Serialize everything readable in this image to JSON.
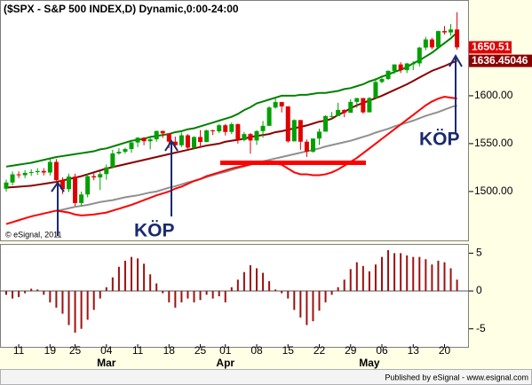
{
  "title": "($SPX - S&P 500 INDEX,D) Dynamic,0:00-24:00",
  "copyright": "© eSignal, 2011",
  "footer": "Published by eSignal - www.esignal.com",
  "chart_data": [
    {
      "type": "candlestick",
      "categories": [
        null,
        null,
        "11",
        null,
        null,
        null,
        null,
        "19",
        null,
        null,
        null,
        "25",
        null,
        null,
        null,
        null,
        "04",
        null,
        null,
        null,
        null,
        "11",
        null,
        null,
        null,
        null,
        "18",
        null,
        null,
        null,
        null,
        "25",
        null,
        null,
        null,
        "01",
        null,
        null,
        null,
        null,
        "08",
        null,
        null,
        null,
        null,
        "15",
        null,
        null,
        null,
        null,
        "22",
        null,
        null,
        null,
        null,
        "29",
        null,
        null,
        null,
        null,
        "06",
        null,
        null,
        null,
        null,
        "13",
        null,
        null,
        null,
        null,
        "20",
        null,
        null
      ],
      "month_labels": [
        null,
        null,
        null,
        null,
        null,
        null,
        null,
        null,
        null,
        null,
        null,
        null,
        null,
        null,
        null,
        null,
        "Mar",
        null,
        null,
        null,
        null,
        null,
        null,
        null,
        null,
        null,
        null,
        null,
        null,
        null,
        null,
        null,
        null,
        null,
        null,
        "Apr",
        null,
        null,
        null,
        null,
        null,
        null,
        null,
        null,
        null,
        null,
        null,
        null,
        null,
        null,
        null,
        null,
        null,
        null,
        null,
        null,
        null,
        null,
        "May",
        null,
        null,
        null,
        null,
        null,
        null,
        null,
        null,
        null,
        null,
        null,
        null,
        null,
        null
      ],
      "open": [
        1502.9,
        1509.4,
        1517.9,
        1517.0,
        1519.4,
        1520.3,
        1521.4,
        1519.8,
        1530.9,
        1511.9,
        1502.4,
        1515.6,
        1487.9,
        1496.9,
        1516.0,
        1514.7,
        1518.2,
        1525.2,
        1539.8,
        1541.5,
        1544.3,
        1551.2,
        1556.2,
        1552.5,
        1554.5,
        1563.2,
        1560.7,
        1552.1,
        1548.3,
        1558.7,
        1545.8,
        1556.9,
        1551.7,
        1563.8,
        1562.9,
        1569.2,
        1562.2,
        1570.3,
        1553.7,
        1560.0,
        1553.3,
        1563.1,
        1568.6,
        1587.7,
        1593.4,
        1588.9,
        1552.4,
        1574.6,
        1552.0,
        1541.6,
        1555.3,
        1562.5,
        1578.8,
        1578.8,
        1585.2,
        1582.2,
        1593.6,
        1597.6,
        1582.7,
        1597.6,
        1614.4,
        1617.5,
        1626.0,
        1632.7,
        1626.7,
        1633.7,
        1633.8,
        1650.3,
        1658.8,
        1650.5,
        1667.5,
        1666.1,
        1669.2
      ],
      "high": [
        1512.4,
        1520.9,
        1520.9,
        1522.4,
        1523.3,
        1524.4,
        1524.4,
        1533.9,
        1533.9,
        1514.9,
        1518.6,
        1518.6,
        1499.9,
        1519.0,
        1519.0,
        1521.2,
        1528.2,
        1543.5,
        1545.3,
        1545.7,
        1552.5,
        1556.8,
        1556.8,
        1556.4,
        1563.6,
        1563.6,
        1561.1,
        1557.3,
        1561.6,
        1560.0,
        1557.7,
        1564.2,
        1564.6,
        1564.6,
        1570.3,
        1570.6,
        1572.1,
        1571.0,
        1562.3,
        1561.0,
        1564.0,
        1573.7,
        1589.1,
        1597.3,
        1593.6,
        1589.0,
        1575.3,
        1574.6,
        1554.4,
        1555.4,
        1565.5,
        1579.6,
        1583.0,
        1592.6,
        1585.8,
        1596.6,
        1597.6,
        1597.6,
        1598.6,
        1618.5,
        1619.8,
        1626.5,
        1632.8,
        1635.0,
        1634.5,
        1636.0,
        1651.1,
        1661.5,
        1660.5,
        1668.0,
        1672.8,
        1674.9,
        1687.2
      ],
      "low": [
        1499.9,
        1506.4,
        1514.0,
        1514.0,
        1516.4,
        1517.3,
        1516.8,
        1516.8,
        1508.9,
        1497.4,
        1499.4,
        1484.9,
        1484.9,
        1493.9,
        1511.7,
        1501.5,
        1512.3,
        1524.2,
        1538.4,
        1539.5,
        1540.4,
        1546.4,
        1548.3,
        1544.1,
        1551.9,
        1555.9,
        1545.1,
        1545.8,
        1546.4,
        1543.8,
        1544.0,
        1546.2,
        1551.5,
        1558.9,
        1561.1,
        1558.5,
        1560.0,
        1550.1,
        1552.3,
        1539.5,
        1548.6,
        1556.1,
        1568.6,
        1586.5,
        1582.6,
        1551.0,
        1552.4,
        1543.5,
        1536.0,
        1540.5,
        1548.6,
        1562.5,
        1575.8,
        1578.8,
        1577.6,
        1582.2,
        1587.4,
        1581.3,
        1582.7,
        1597.6,
        1613.0,
        1616.6,
        1622.7,
        1623.7,
        1623.7,
        1626.7,
        1630.7,
        1647.6,
        1648.5,
        1652.1,
        1664.0,
        1662.7,
        1648.0
      ],
      "close": [
        1509.4,
        1517.9,
        1517.0,
        1519.4,
        1520.3,
        1521.4,
        1519.8,
        1530.9,
        1511.9,
        1502.4,
        1515.6,
        1487.9,
        1496.9,
        1516.0,
        1514.7,
        1518.2,
        1525.2,
        1539.8,
        1541.5,
        1544.3,
        1551.2,
        1556.2,
        1552.5,
        1554.5,
        1563.2,
        1560.7,
        1552.1,
        1548.3,
        1558.7,
        1545.8,
        1556.9,
        1551.7,
        1563.8,
        1562.9,
        1569.2,
        1562.2,
        1570.3,
        1553.7,
        1560.0,
        1553.3,
        1563.1,
        1568.6,
        1587.7,
        1593.4,
        1588.9,
        1552.4,
        1574.6,
        1552.0,
        1541.6,
        1555.3,
        1562.5,
        1578.8,
        1578.8,
        1585.2,
        1582.2,
        1593.6,
        1597.6,
        1582.7,
        1597.6,
        1614.4,
        1617.5,
        1626.0,
        1632.7,
        1626.7,
        1633.7,
        1633.8,
        1650.3,
        1658.8,
        1650.5,
        1667.5,
        1666.1,
        1669.2,
        1650.51
      ],
      "up_color": "#00a000",
      "down_color": "#e00000",
      "series": [
        {
          "color": "#909090",
          "values": [
            null,
            null,
            null,
            null,
            null,
            null,
            null,
            null,
            1480,
            1481,
            1482.5,
            1484,
            1485,
            1486,
            1487.5,
            1489,
            1490,
            1491,
            1492.5,
            1494,
            1495,
            1496,
            1497.5,
            1499,
            1500,
            1502,
            1504,
            1505.5,
            1507.5,
            1509.5,
            1511,
            1513,
            1515,
            1517,
            1519,
            1520.5,
            1522.5,
            1524.5,
            1526,
            1528,
            1530,
            1531.5,
            1533,
            1534.5,
            1536,
            1537.5,
            1539,
            1540.5,
            1542,
            1543.5,
            1545,
            1547,
            1548.5,
            1550,
            1551.5,
            1553,
            1555,
            1557,
            1559,
            1561.5,
            1563.5,
            1565.5,
            1568,
            1570,
            1572,
            1574,
            1576.5,
            1579,
            1581,
            1583,
            1585.5,
            1588,
            1590
          ]
        },
        {
          "color": "#ff0000",
          "values": [
            1466,
            1468,
            1470,
            1472,
            1474,
            1475.5,
            1477,
            1478.5,
            1480,
            1479,
            1478,
            1476,
            1475,
            1475.5,
            1476,
            1477,
            1478,
            1480,
            1482,
            1484,
            1486,
            1488.5,
            1491,
            1493.5,
            1496,
            1498,
            1500,
            1503,
            1505,
            1508,
            1511,
            1513,
            1516,
            1518,
            1520,
            1522,
            1524,
            1525.5,
            1527,
            1528.5,
            1530,
            1530,
            1529.5,
            1529,
            1528,
            1524,
            1520,
            1518,
            1518,
            1517,
            1517,
            1518,
            1520,
            1523,
            1527,
            1531,
            1535,
            1540,
            1545,
            1550,
            1555,
            1560,
            1565,
            1570,
            1575,
            1580,
            1585,
            1590,
            1594,
            1597,
            1599,
            1598,
            1597
          ]
        },
        {
          "color": "#8b0000",
          "values": [
            1504,
            1504.5,
            1505,
            1505.5,
            1506,
            1507,
            1508,
            1509,
            1510,
            1511.5,
            1513,
            1514.5,
            1516,
            1518,
            1520,
            1522,
            1524,
            1525.5,
            1527,
            1528.5,
            1530,
            1531.5,
            1533,
            1534.5,
            1536,
            1537.5,
            1539,
            1540.5,
            1542,
            1543.5,
            1545,
            1546.5,
            1548,
            1549,
            1550,
            1552,
            1553,
            1554,
            1555,
            1557,
            1558,
            1559,
            1560,
            1562,
            1563,
            1564.5,
            1566,
            1567.5,
            1569,
            1571,
            1573,
            1574,
            1576,
            1580,
            1583,
            1587,
            1590,
            1592.5,
            1595,
            1597.5,
            1600,
            1603,
            1606,
            1609,
            1612,
            1615.5,
            1619,
            1622.5,
            1626,
            1628.5,
            1631,
            1634,
            1636.45046
          ]
        },
        {
          "color": "#008000",
          "values": [
            1526,
            1527,
            1528,
            1529,
            1530,
            1531.5,
            1533,
            1534.5,
            1536,
            1537,
            1538,
            1539,
            1540,
            1541,
            1542,
            1544,
            1545,
            1547,
            1549,
            1551,
            1553,
            1554,
            1555,
            1557,
            1558,
            1559,
            1560,
            1562,
            1563,
            1565,
            1566,
            1568,
            1570,
            1572,
            1574,
            1576,
            1578,
            1581,
            1585,
            1588,
            1592,
            1594,
            1596,
            1598,
            1600,
            1600,
            1600,
            1601,
            1601,
            1602,
            1603,
            1603,
            1604,
            1605,
            1607,
            1608,
            1610,
            1612,
            1615,
            1617,
            1620,
            1622,
            1625,
            1627,
            1630,
            1634,
            1637,
            1641,
            1645,
            1650,
            1655,
            1660,
            1666
          ]
        }
      ],
      "support_level": 1530,
      "support_color": "#ff0000",
      "annotations": [
        "KÖP",
        "KÖP"
      ],
      "ylim": [
        1448,
        1700
      ],
      "yticks": [
        {
          "value": 1500,
          "label": "1500.00"
        },
        {
          "value": 1550,
          "label": "1550.00"
        },
        {
          "value": 1600,
          "label": "1600.00"
        }
      ]
    },
    {
      "type": "bar",
      "color": "#a01010",
      "values": [
        -0.5,
        -1,
        -0.8,
        -0.3,
        0.3,
        0.2,
        -0.5,
        -1.5,
        -2.2,
        -3,
        -4.5,
        -5.5,
        -5,
        -3.8,
        -2.5,
        -1,
        0.5,
        1.8,
        3.2,
        4,
        4.5,
        4.3,
        3.6,
        2.2,
        1,
        -0.3,
        -1.5,
        -2.2,
        -1.5,
        -1,
        -1.5,
        -1.2,
        -0.5,
        -1,
        -0.7,
        -1.5,
        0.5,
        1.5,
        2.5,
        3.4,
        3,
        2.4,
        1.3,
        0.2,
        -0.3,
        -1,
        -2.5,
        -3.5,
        -4.5,
        -4,
        -2.6,
        -1.5,
        -0.5,
        0.5,
        1.5,
        2.9,
        3.8,
        3.3,
        2.6,
        3.5,
        4.5,
        5.4,
        5,
        5,
        4.7,
        4.5,
        4.5,
        4.2,
        3.5,
        4,
        3.8,
        3,
        1.5
      ],
      "ylim": [
        -7.5,
        6.1
      ],
      "yticks": [
        -5,
        0,
        5
      ]
    }
  ]
}
